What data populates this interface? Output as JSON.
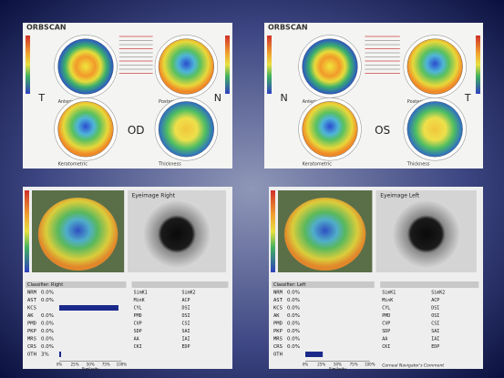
{
  "panels": [
    {
      "brand": "ORBSCAN",
      "eye": "OD",
      "side_left": "T",
      "side_right": "N",
      "maps": [
        "Anterior Float",
        "Posterior Float",
        "Keratometric",
        "Thickness"
      ]
    },
    {
      "brand": "ORBSCAN",
      "eye": "OS",
      "side_left": "N",
      "side_right": "T",
      "maps": [
        "Anterior Float",
        "Posterior Float",
        "Keratometric",
        "Thickness"
      ]
    }
  ],
  "classifiers": [
    {
      "title": "Classifier: Right",
      "eye_image": "Eyeimage Right",
      "rows": [
        {
          "name": "NRM",
          "value": 0,
          "label": "0.0%"
        },
        {
          "name": "AST",
          "value": 0,
          "label": "0.0%"
        },
        {
          "name": "KCS",
          "value": 95,
          "label": null
        },
        {
          "name": "AK",
          "value": 0,
          "label": "0.0%"
        },
        {
          "name": "PMD",
          "value": 0,
          "label": "0.0%"
        },
        {
          "name": "PKP",
          "value": 0,
          "label": "0.0%"
        },
        {
          "name": "MRS",
          "value": 0,
          "label": "0.0%"
        },
        {
          "name": "CRS",
          "value": 0,
          "label": "0.0%"
        },
        {
          "name": "OTH",
          "value": 3,
          "label": "3%"
        }
      ],
      "axis": [
        "0%",
        "25%",
        "50%",
        "75%",
        "100%"
      ],
      "axis_title": "Similarity",
      "indices": [
        "SimK1",
        "SimK2",
        "MinK",
        "ACP",
        "CYL",
        "DSI",
        "PMD",
        "OSI",
        "CVP",
        "CSI",
        "SDP",
        "SAI",
        "AA",
        "IAI",
        "CKI",
        "EDP"
      ],
      "comment": null
    },
    {
      "title": "Classifier: Left",
      "eye_image": "Eyeimage Left",
      "rows": [
        {
          "name": "NRM",
          "value": 0,
          "label": "0.0%"
        },
        {
          "name": "AST",
          "value": 0,
          "label": "0.0%"
        },
        {
          "name": "KCS",
          "value": 0,
          "label": "0.0%"
        },
        {
          "name": "AK",
          "value": 0,
          "label": "0.0%"
        },
        {
          "name": "PMD",
          "value": 0,
          "label": "0.0%"
        },
        {
          "name": "PKP",
          "value": 0,
          "label": "0.0%"
        },
        {
          "name": "MRS",
          "value": 0,
          "label": "0.0%"
        },
        {
          "name": "CRS",
          "value": 0,
          "label": "0.0%"
        },
        {
          "name": "OTH",
          "value": 27,
          "label": null
        }
      ],
      "axis": [
        "0%",
        "25%",
        "50%",
        "75%",
        "100%"
      ],
      "axis_title": "Similarity",
      "indices": [
        "SimK1",
        "SimK2",
        "MinK",
        "ACP",
        "CYL",
        "DSI",
        "PMD",
        "OSI",
        "CVP",
        "CSI",
        "SDP",
        "SAI",
        "AA",
        "IAI",
        "CKI",
        "EDP"
      ],
      "comment": "Corneal Navigator's Comment"
    }
  ]
}
